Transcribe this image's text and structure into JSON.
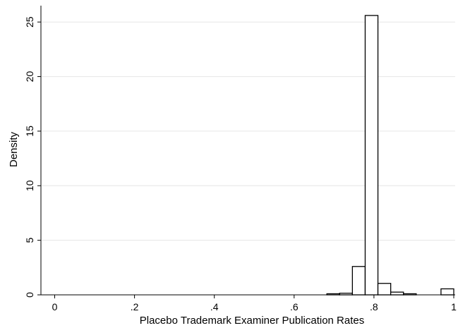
{
  "chart_data": {
    "type": "bar",
    "xlabel": "Placebo Trademark Examiner Publication Rates",
    "ylabel": "Density",
    "xlim": [
      -0.05,
      1.0
    ],
    "ylim": [
      0,
      26.5
    ],
    "xticks": [
      {
        "value": 0,
        "label": "0"
      },
      {
        "value": 0.2,
        "label": ".2"
      },
      {
        "value": 0.4,
        "label": ".4"
      },
      {
        "value": 0.6,
        "label": ".6"
      },
      {
        "value": 0.8,
        "label": ".8"
      },
      {
        "value": 1.0,
        "label": "1"
      }
    ],
    "yticks": [
      {
        "value": 0,
        "label": "0"
      },
      {
        "value": 5,
        "label": "5"
      },
      {
        "value": 10,
        "label": "10"
      },
      {
        "value": 15,
        "label": "15"
      },
      {
        "value": 20,
        "label": "20"
      },
      {
        "value": 25,
        "label": "25"
      }
    ],
    "grid": "horizontal",
    "bins": [
      {
        "x0": 0.682,
        "x1": 0.714,
        "density": 0.1
      },
      {
        "x0": 0.714,
        "x1": 0.746,
        "density": 0.15
      },
      {
        "x0": 0.746,
        "x1": 0.778,
        "density": 2.6
      },
      {
        "x0": 0.778,
        "x1": 0.81,
        "density": 25.6
      },
      {
        "x0": 0.81,
        "x1": 0.842,
        "density": 1.05
      },
      {
        "x0": 0.842,
        "x1": 0.874,
        "density": 0.25
      },
      {
        "x0": 0.874,
        "x1": 0.906,
        "density": 0.1
      },
      {
        "x0": 0.968,
        "x1": 1.0,
        "density": 0.55
      }
    ],
    "colors": {
      "bar_fill": "#ffffff",
      "bar_stroke": "#000000",
      "grid": "#e6e6e6"
    }
  }
}
